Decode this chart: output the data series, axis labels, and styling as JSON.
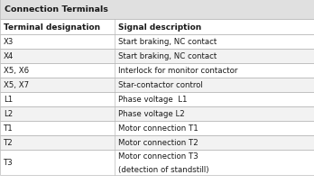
{
  "title": "Connection Terminals",
  "header": [
    "Terminal designation",
    "Signal description"
  ],
  "rows": [
    [
      "X3",
      "Start braking, NC contact"
    ],
    [
      "X4",
      "Start braking, NC contact"
    ],
    [
      "X5, X6",
      "Interlock for monitor contactor"
    ],
    [
      "X5, X7",
      "Star-contactor control"
    ],
    [
      "L1",
      "Phase voltage  L1"
    ],
    [
      "L2",
      "Phase voltage L2"
    ],
    [
      "T1",
      "Motor connection T1"
    ],
    [
      "T2",
      "Motor connection T2"
    ],
    [
      "T3",
      "Motor connection T3\n(detection of standstill)"
    ]
  ],
  "col_split": 0.365,
  "title_bg": "#e0e0e0",
  "header_bg": "#ffffff",
  "row_bg_white": "#ffffff",
  "row_bg_gray": "#f2f2f2",
  "border_color": "#bbbbbb",
  "text_color": "#1a1a1a",
  "title_fontsize": 6.8,
  "header_fontsize": 6.5,
  "row_fontsize": 6.2,
  "fig_width": 3.48,
  "fig_height": 2.05,
  "dpi": 100
}
